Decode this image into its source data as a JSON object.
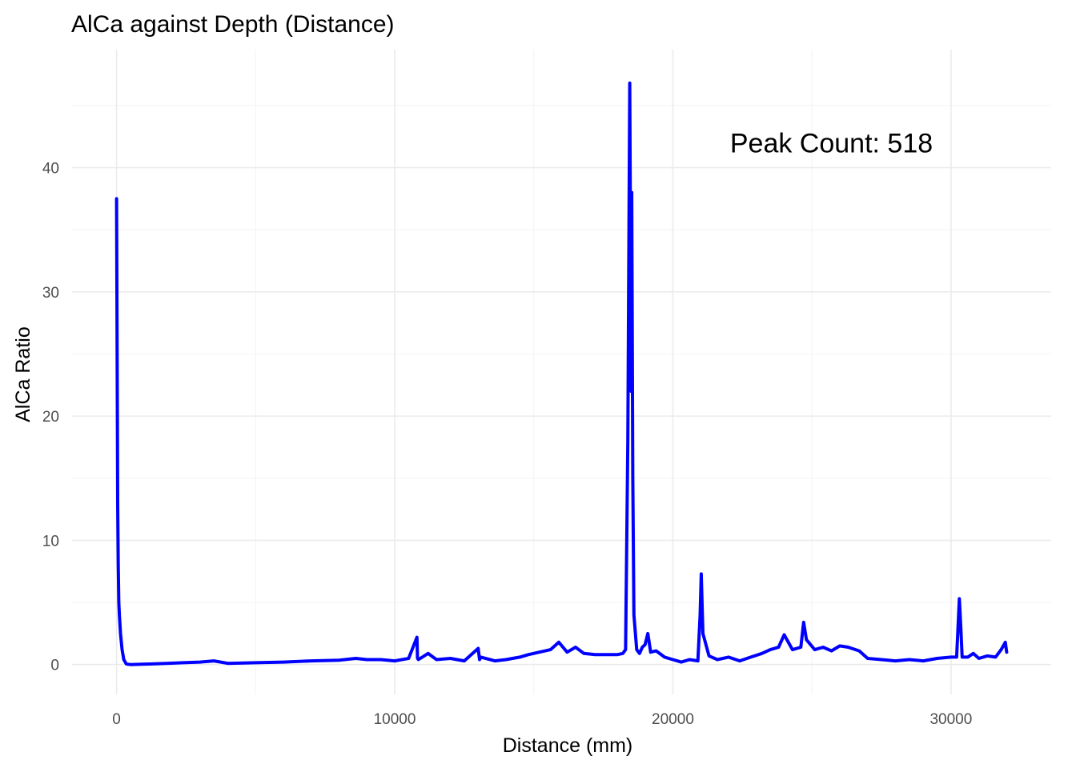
{
  "chart_data": {
    "type": "line",
    "title": "AlCa against Depth (Distance)",
    "xlabel": "Distance (mm)",
    "ylabel": "AlCa Ratio",
    "xlim": [
      -1600,
      33600
    ],
    "ylim": [
      -2.4,
      49.5
    ],
    "x_ticks": [
      0,
      10000,
      20000,
      30000
    ],
    "x_tick_labels": [
      "0",
      "10000",
      "20000",
      "30000"
    ],
    "y_ticks": [
      0,
      10,
      20,
      30,
      40
    ],
    "y_tick_labels": [
      "0",
      "10",
      "20",
      "30",
      "40"
    ],
    "grid": true,
    "series": [
      {
        "color": "#0000ff",
        "x": [
          0,
          20,
          40,
          60,
          80,
          100,
          140,
          200,
          260,
          350,
          500,
          800,
          1200,
          1800,
          2400,
          3000,
          3500,
          4000,
          5000,
          6000,
          7000,
          8000,
          8600,
          9000,
          9500,
          10000,
          10500,
          10800,
          10820,
          10850,
          11200,
          11500,
          12000,
          12500,
          13000,
          13050,
          13100,
          13600,
          14000,
          14500,
          14800,
          15200,
          15600,
          15900,
          16200,
          16500,
          16800,
          17200,
          17600,
          18000,
          18200,
          18300,
          18380,
          18420,
          18450,
          18480,
          18500,
          18520,
          18560,
          18600,
          18700,
          18800,
          18900,
          19000,
          19100,
          19200,
          19400,
          19700,
          20000,
          20300,
          20600,
          20900,
          20980,
          21020,
          21080,
          21300,
          21600,
          22000,
          22400,
          22800,
          23200,
          23500,
          23800,
          24000,
          24300,
          24600,
          24700,
          24800,
          25100,
          25400,
          25700,
          26000,
          26300,
          26700,
          27000,
          27500,
          28000,
          28500,
          29000,
          29500,
          30000,
          30200,
          30300,
          30350,
          30400,
          30600,
          30800,
          31000,
          31300,
          31600,
          31800,
          31950,
          32000
        ],
        "y": [
          37.5,
          25,
          13,
          8,
          5,
          4,
          2.5,
          1.2,
          0.4,
          0.05,
          0,
          0.02,
          0.05,
          0.1,
          0.15,
          0.2,
          0.3,
          0.1,
          0.15,
          0.2,
          0.3,
          0.35,
          0.5,
          0.4,
          0.4,
          0.3,
          0.5,
          2.2,
          0.5,
          0.4,
          0.9,
          0.4,
          0.5,
          0.3,
          1.3,
          0.4,
          0.6,
          0.3,
          0.4,
          0.6,
          0.8,
          1.0,
          1.2,
          1.8,
          1.0,
          1.4,
          0.9,
          0.8,
          0.8,
          0.8,
          0.9,
          1.2,
          18,
          35,
          46.8,
          32,
          22,
          38,
          15,
          4,
          1.2,
          0.9,
          1.4,
          1.6,
          2.5,
          1.0,
          1.1,
          0.6,
          0.4,
          0.2,
          0.4,
          0.3,
          4,
          7.3,
          2.5,
          0.7,
          0.4,
          0.6,
          0.3,
          0.6,
          0.9,
          1.2,
          1.4,
          2.4,
          1.2,
          1.4,
          3.4,
          2,
          1.2,
          1.4,
          1.1,
          1.5,
          1.4,
          1.1,
          0.5,
          0.4,
          0.3,
          0.4,
          0.3,
          0.5,
          0.6,
          0.6,
          5.3,
          3,
          0.6,
          0.6,
          0.9,
          0.5,
          0.7,
          0.6,
          1.2,
          1.8,
          1.0
        ]
      }
    ],
    "annotation": {
      "text": "Peak Count: 518",
      "x": 25700,
      "y": 42
    }
  }
}
